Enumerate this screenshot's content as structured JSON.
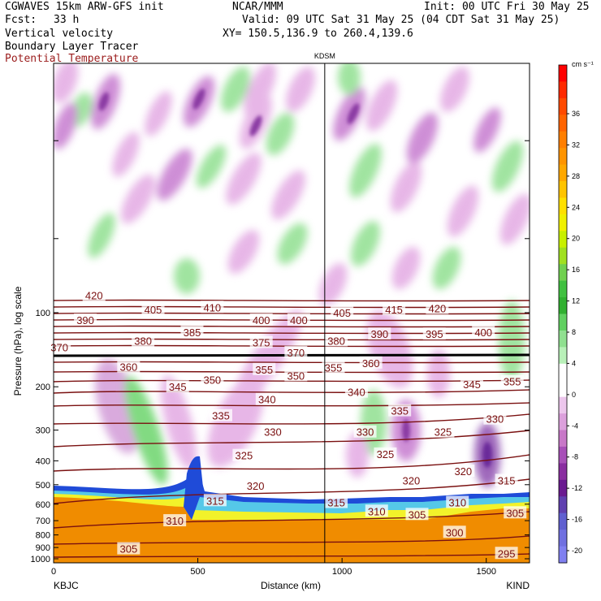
{
  "header": {
    "model": "CGWAVES 15km ARW-GFS init",
    "org": "NCAR/MMM",
    "init": "Init: 00 UTC Fri 30 May 25",
    "fcst_label": "Fcst:",
    "fcst_value": "33 h",
    "valid": "Valid: 09 UTC Sat 31 May 25 (04 CDT Sat 31 May 25)",
    "field1": "Vertical velocity",
    "field2": "Boundary Layer Tracer",
    "field3": "Potential Temperature",
    "xy": "XY= 150.5,136.9 to 260.4,139.6"
  },
  "colors": {
    "theta_contour": "#7a1010",
    "pbl_orange": "#f08c00",
    "field3_text": "#9b1c1c"
  },
  "chart_data": {
    "type": "heatmap",
    "title": "",
    "xlabel": "Distance (km)",
    "ylabel": "Pressure (hPa), log scale",
    "x_range": [
      0,
      1650
    ],
    "y_range_hpa": [
      1050,
      10
    ],
    "y_scale": "log",
    "x_ticks": [
      "0",
      "500",
      "1000",
      "1500"
    ],
    "y_ticks": [
      "100",
      "200",
      "300",
      "400",
      "500",
      "600",
      "700",
      "800",
      "900",
      "1000"
    ],
    "endpoint_left": "KBJC",
    "endpoint_right": "KIND",
    "station_marker": {
      "label": "KDSM",
      "x_km": 940
    },
    "colorbar": {
      "unit": "cm s⁻¹",
      "labels": [
        "36",
        "32",
        "28",
        "24",
        "20",
        "16",
        "12",
        "8",
        "4",
        "0",
        "-4",
        "-8",
        "-12",
        "-16",
        "-20"
      ]
    },
    "theta_contour_labels": [
      {
        "text": "420",
        "x": 140,
        "p": 85
      },
      {
        "text": "405",
        "x": 345,
        "p": 97
      },
      {
        "text": "410",
        "x": 550,
        "p": 95
      },
      {
        "text": "390",
        "x": 110,
        "p": 107
      },
      {
        "text": "400",
        "x": 720,
        "p": 107
      },
      {
        "text": "400",
        "x": 850,
        "p": 107
      },
      {
        "text": "405",
        "x": 1000,
        "p": 100
      },
      {
        "text": "415",
        "x": 1180,
        "p": 97
      },
      {
        "text": "420",
        "x": 1330,
        "p": 96
      },
      {
        "text": "385",
        "x": 480,
        "p": 120
      },
      {
        "text": "380",
        "x": 310,
        "p": 130
      },
      {
        "text": "375",
        "x": 720,
        "p": 132
      },
      {
        "text": "380",
        "x": 980,
        "p": 130
      },
      {
        "text": "390",
        "x": 1130,
        "p": 122
      },
      {
        "text": "395",
        "x": 1320,
        "p": 122
      },
      {
        "text": "400",
        "x": 1490,
        "p": 120
      },
      {
        "text": "370",
        "x": 20,
        "p": 138
      },
      {
        "text": "370",
        "x": 840,
        "p": 145
      },
      {
        "text": "360",
        "x": 260,
        "p": 166
      },
      {
        "text": "360",
        "x": 1100,
        "p": 160
      },
      {
        "text": "355",
        "x": 730,
        "p": 170
      },
      {
        "text": "355",
        "x": 970,
        "p": 167
      },
      {
        "text": "350",
        "x": 550,
        "p": 187
      },
      {
        "text": "350",
        "x": 840,
        "p": 180
      },
      {
        "text": "355",
        "x": 1590,
        "p": 190
      },
      {
        "text": "345",
        "x": 430,
        "p": 200
      },
      {
        "text": "345",
        "x": 1450,
        "p": 195
      },
      {
        "text": "340",
        "x": 740,
        "p": 225
      },
      {
        "text": "340",
        "x": 1050,
        "p": 210
      },
      {
        "text": "335",
        "x": 580,
        "p": 262
      },
      {
        "text": "335",
        "x": 1200,
        "p": 250
      },
      {
        "text": "330",
        "x": 1530,
        "p": 270
      },
      {
        "text": "330",
        "x": 760,
        "p": 305
      },
      {
        "text": "330",
        "x": 1080,
        "p": 305
      },
      {
        "text": "325",
        "x": 1350,
        "p": 305
      },
      {
        "text": "325",
        "x": 660,
        "p": 380
      },
      {
        "text": "325",
        "x": 1150,
        "p": 375
      },
      {
        "text": "320",
        "x": 1420,
        "p": 440
      },
      {
        "text": "320",
        "x": 1240,
        "p": 480
      },
      {
        "text": "320",
        "x": 700,
        "p": 505
      },
      {
        "text": "315",
        "x": 1570,
        "p": 480
      },
      {
        "text": "315",
        "x": 560,
        "p": 580
      },
      {
        "text": "315",
        "x": 980,
        "p": 590
      },
      {
        "text": "310",
        "x": 1120,
        "p": 640
      },
      {
        "text": "310",
        "x": 1400,
        "p": 590
      },
      {
        "text": "305",
        "x": 1260,
        "p": 660
      },
      {
        "text": "305",
        "x": 1600,
        "p": 650
      },
      {
        "text": "310",
        "x": 420,
        "p": 700
      },
      {
        "text": "300",
        "x": 1390,
        "p": 780
      },
      {
        "text": "305",
        "x": 260,
        "p": 910
      },
      {
        "text": "295",
        "x": 1570,
        "p": 950
      }
    ]
  }
}
